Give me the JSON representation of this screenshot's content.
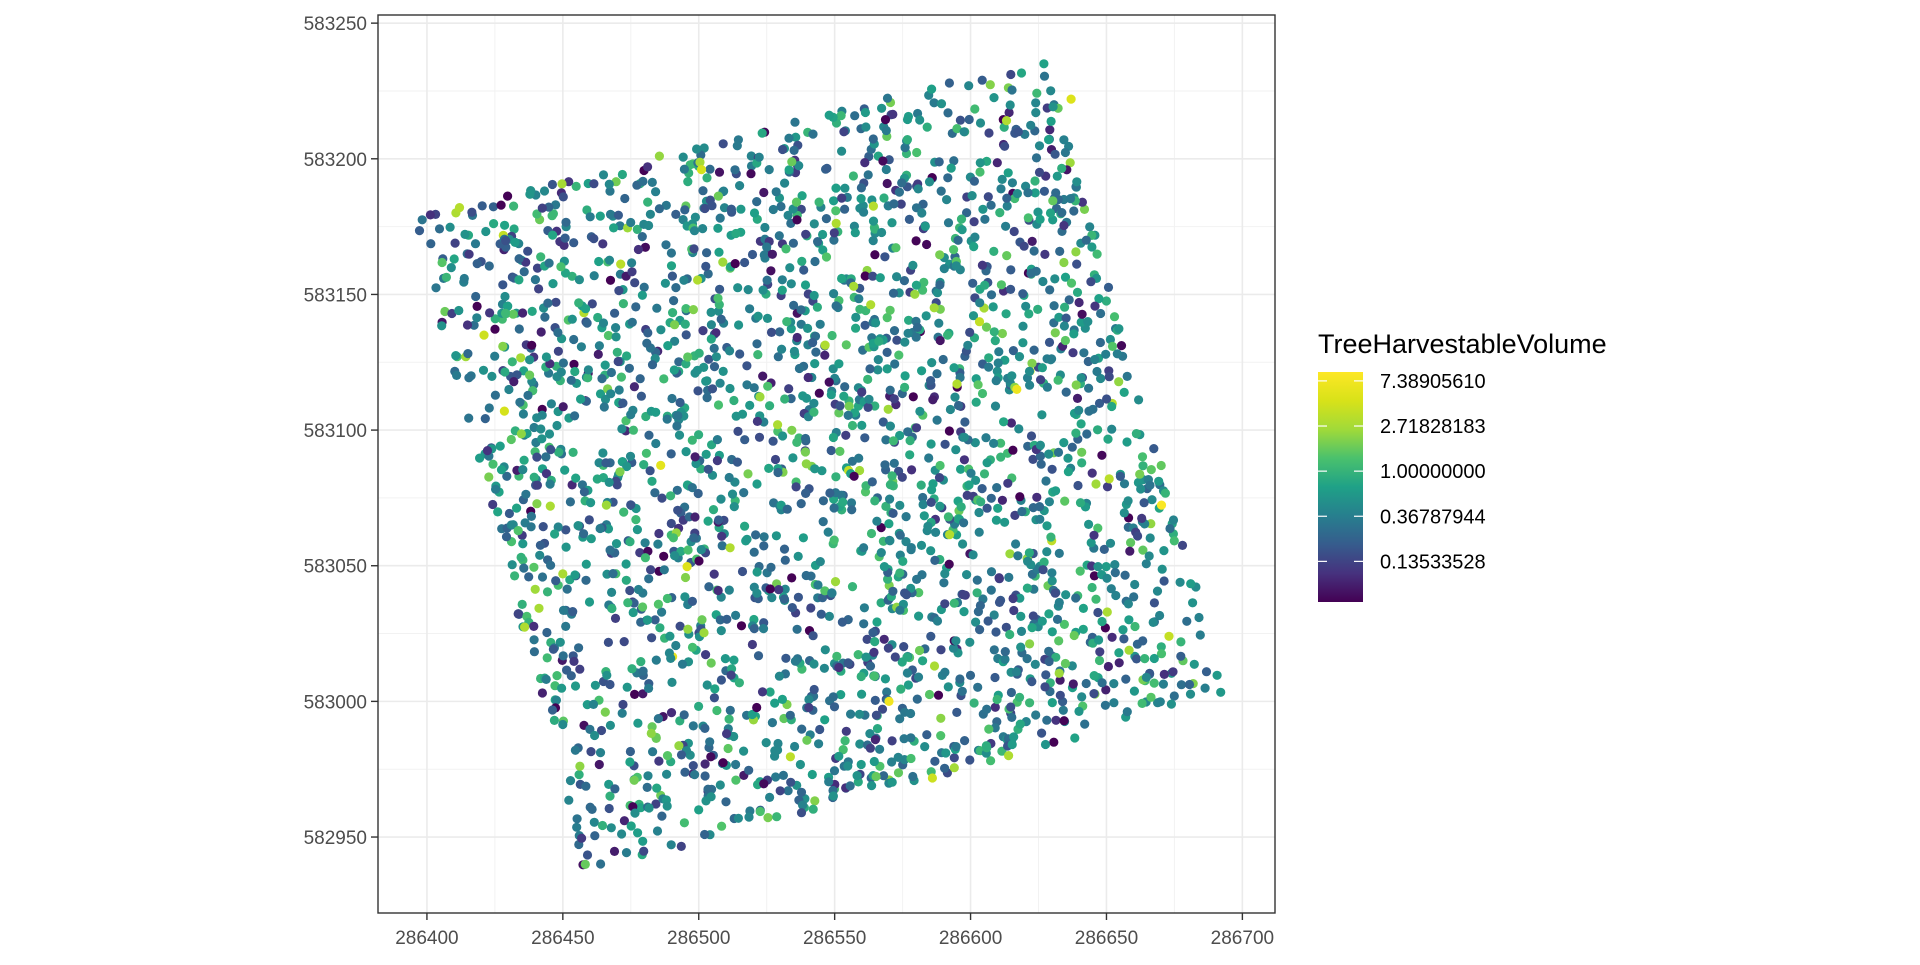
{
  "chart_data": {
    "type": "scatter",
    "title": "",
    "xlabel": "",
    "ylabel": "",
    "xlim": [
      286382,
      286712
    ],
    "ylim": [
      582922,
      583253
    ],
    "x_ticks": [
      286400,
      286450,
      286500,
      286550,
      286600,
      286650,
      286700
    ],
    "x_tick_labels": [
      "286400",
      "286450",
      "286500",
      "286550",
      "286600",
      "286650",
      "286700"
    ],
    "y_ticks": [
      582950,
      583000,
      583050,
      583100,
      583150,
      583200,
      583250
    ],
    "y_tick_labels": [
      "582950",
      "583000",
      "583050",
      "583100",
      "583150",
      "583200",
      "583250"
    ],
    "grid": true,
    "legend_placement": "right",
    "legend": {
      "title": "TreeHarvestableVolume",
      "scale": "log",
      "min": 0.055,
      "max": 9.0,
      "breaks": [
        7.3890561,
        2.71828183,
        1.0,
        0.36787944,
        0.13533528
      ],
      "labels": [
        "7.38905610",
        "2.71828183",
        "1.00000000",
        "0.36787944",
        "0.13533528"
      ]
    },
    "colors": [
      "#440154",
      "#3b528b",
      "#21918c",
      "#5ec962",
      "#fde725"
    ],
    "plot_region": {
      "corners": [
        [
          286395,
          583178
        ],
        [
          286627,
          583237
        ],
        [
          286695,
          583002
        ],
        [
          286458,
          582936
        ]
      ]
    },
    "series": [
      {
        "name": "TreeHarvestableVolume",
        "generated_points": 2600,
        "points": [
          {
            "x": 286570,
            "y": 583000,
            "v": 7.39
          },
          {
            "x": 286617,
            "y": 583115,
            "v": 6.8
          },
          {
            "x": 286486,
            "y": 583087,
            "v": 5.9
          },
          {
            "x": 286501,
            "y": 583196,
            "v": 4.6
          },
          {
            "x": 286637,
            "y": 583222,
            "v": 5.2
          },
          {
            "x": 286421,
            "y": 583135,
            "v": 4.2
          },
          {
            "x": 286595,
            "y": 583117,
            "v": 3.1
          },
          {
            "x": 286651,
            "y": 583082,
            "v": 3.4
          },
          {
            "x": 286529,
            "y": 583102,
            "v": 2.9
          },
          {
            "x": 286673,
            "y": 583024,
            "v": 3.8
          },
          {
            "x": 286614,
            "y": 582980,
            "v": 3.0
          },
          {
            "x": 286450,
            "y": 583047,
            "v": 2.8
          },
          {
            "x": 286412,
            "y": 583182,
            "v": 3.2
          },
          {
            "x": 286557,
            "y": 583153,
            "v": 2.7
          }
        ]
      }
    ]
  }
}
